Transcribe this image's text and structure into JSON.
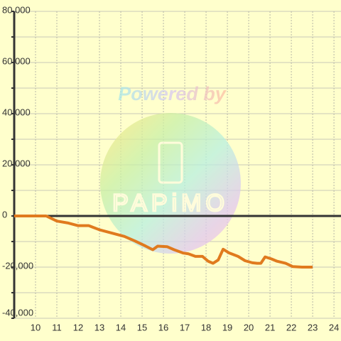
{
  "chart_data": {
    "type": "line",
    "x": [
      9,
      10.5,
      11,
      11.5,
      12,
      12.5,
      13,
      13.5,
      14.17,
      14.67,
      15.17,
      15.5,
      15.73,
      16.17,
      16.5,
      16.93,
      17.17,
      17.5,
      17.83,
      18.1,
      18.33,
      18.57,
      18.8,
      19.07,
      19.5,
      19.83,
      20.17,
      20.4,
      20.57,
      20.77,
      21.07,
      21.33,
      21.73,
      22.07,
      22.5,
      23
    ],
    "series": [
      {
        "color": "#e07a1e",
        "values": [
          0,
          0,
          -2000,
          -2700,
          -3800,
          -3800,
          -5400,
          -6500,
          -8000,
          -9800,
          -11800,
          -13200,
          -11800,
          -12000,
          -13200,
          -14500,
          -14800,
          -15800,
          -15800,
          -17700,
          -18500,
          -17200,
          -13000,
          -14400,
          -15800,
          -17500,
          -18300,
          -18500,
          -18500,
          -16000,
          -16800,
          -17700,
          -18500,
          -19800,
          -20000,
          -20000
        ]
      }
    ],
    "xlim": [
      9,
      24.33
    ],
    "xticks": [
      10,
      11,
      12,
      13,
      14,
      15,
      16,
      17,
      18,
      19,
      20,
      21,
      22,
      23,
      24
    ],
    "ylim": [
      -40000,
      80000
    ],
    "yticks": [
      {
        "value": -40000,
        "label": "-40,000"
      },
      {
        "value": -20000,
        "label": "-20,000"
      },
      0,
      {
        "value": 20000,
        "label": "20,000"
      },
      {
        "value": 40000,
        "label": "40,000"
      },
      {
        "value": 60000,
        "label": "60,000"
      },
      {
        "value": 80000,
        "label": "80,000"
      }
    ],
    "yminorticks": [
      -30000,
      -10000,
      10000,
      30000,
      50000,
      70000
    ],
    "grid": true,
    "watermark": "Powered by",
    "watermark_logo": "PAPiMO"
  }
}
